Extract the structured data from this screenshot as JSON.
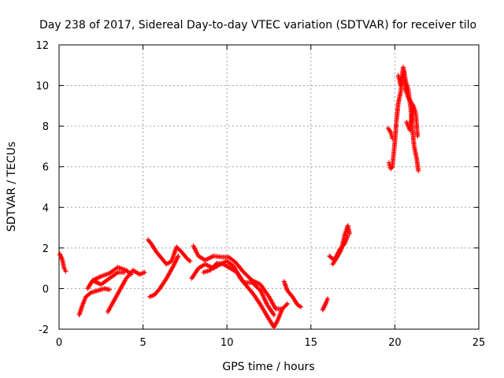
{
  "chart_data": {
    "type": "scatter",
    "title": "Day 238 of 2017, Sidereal Day-to-day VTEC variation (SDTVAR) for receiver tilo",
    "xlabel": "GPS time / hours",
    "ylabel": "SDTVAR / TECUs",
    "xlim": [
      0,
      25
    ],
    "ylim": [
      -2,
      12
    ],
    "x_ticks": [
      "0",
      "5",
      "10",
      "15",
      "20",
      "25"
    ],
    "y_ticks": [
      "-2",
      "0",
      "2",
      "4",
      "6",
      "8",
      "10",
      "12"
    ],
    "grid": true,
    "marker": "+",
    "color": "#ff0000",
    "series": [
      {
        "name": "SDTVAR",
        "segments": [
          [
            [
              0.05,
              1.7
            ],
            [
              0.2,
              1.4
            ],
            [
              0.3,
              1.0
            ],
            [
              0.4,
              0.85
            ]
          ],
          [
            [
              1.2,
              -1.3
            ],
            [
              1.4,
              -0.8
            ],
            [
              1.6,
              -0.4
            ],
            [
              1.9,
              -0.2
            ],
            [
              2.3,
              -0.1
            ],
            [
              2.7,
              0.0
            ],
            [
              3.0,
              -0.05
            ]
          ],
          [
            [
              1.7,
              0.0
            ],
            [
              2.0,
              0.4
            ],
            [
              2.5,
              0.6
            ],
            [
              3.0,
              0.75
            ],
            [
              3.5,
              1.05
            ],
            [
              4.0,
              0.9
            ],
            [
              4.3,
              0.7
            ]
          ],
          [
            [
              2.0,
              0.4
            ],
            [
              2.5,
              0.2
            ],
            [
              3.0,
              0.5
            ],
            [
              3.5,
              0.8
            ],
            [
              3.9,
              0.8
            ]
          ],
          [
            [
              2.9,
              -1.15
            ],
            [
              3.2,
              -0.7
            ],
            [
              3.6,
              -0.1
            ],
            [
              4.0,
              0.5
            ],
            [
              4.4,
              0.9
            ],
            [
              4.8,
              0.7
            ],
            [
              5.1,
              0.8
            ]
          ],
          [
            [
              5.3,
              2.4
            ],
            [
              5.5,
              2.2
            ],
            [
              5.8,
              1.8
            ],
            [
              6.1,
              1.5
            ],
            [
              6.4,
              1.2
            ],
            [
              6.7,
              1.35
            ],
            [
              7.0,
              2.05
            ],
            [
              7.3,
              1.8
            ],
            [
              7.6,
              1.5
            ],
            [
              7.8,
              1.35
            ]
          ],
          [
            [
              5.4,
              -0.4
            ],
            [
              5.7,
              -0.3
            ],
            [
              6.0,
              0.0
            ],
            [
              6.4,
              0.5
            ],
            [
              6.8,
              1.1
            ],
            [
              7.1,
              1.6
            ]
          ],
          [
            [
              8.0,
              2.1
            ],
            [
              8.3,
              1.6
            ],
            [
              8.7,
              1.4
            ],
            [
              9.2,
              1.6
            ],
            [
              9.7,
              1.55
            ],
            [
              10.1,
              1.55
            ],
            [
              10.5,
              1.3
            ],
            [
              11.0,
              0.8
            ],
            [
              11.5,
              0.4
            ],
            [
              12.0,
              0.2
            ],
            [
              12.5,
              -0.4
            ],
            [
              12.9,
              -1.0
            ],
            [
              13.3,
              -1.0
            ]
          ],
          [
            [
              7.9,
              0.5
            ],
            [
              8.3,
              1.0
            ],
            [
              8.7,
              1.2
            ],
            [
              9.2,
              1.0
            ],
            [
              9.6,
              1.2
            ],
            [
              10.0,
              1.35
            ],
            [
              10.4,
              1.1
            ],
            [
              10.8,
              0.5
            ],
            [
              11.2,
              0.1
            ],
            [
              11.6,
              -0.3
            ],
            [
              12.0,
              -0.8
            ],
            [
              12.5,
              -1.5
            ],
            [
              12.8,
              -1.9
            ],
            [
              13.0,
              -1.6
            ],
            [
              13.3,
              -1.0
            ],
            [
              13.6,
              -0.75
            ]
          ],
          [
            [
              8.6,
              0.8
            ],
            [
              9.0,
              0.9
            ],
            [
              9.4,
              1.25
            ],
            [
              9.8,
              1.2
            ],
            [
              10.2,
              1.0
            ],
            [
              10.6,
              0.8
            ],
            [
              11.0,
              0.3
            ],
            [
              11.5,
              0.3
            ],
            [
              12.0,
              -0.1
            ],
            [
              12.4,
              -0.8
            ],
            [
              12.8,
              -1.3
            ]
          ],
          [
            [
              13.4,
              0.35
            ],
            [
              13.6,
              -0.1
            ],
            [
              13.9,
              -0.4
            ],
            [
              14.2,
              -0.8
            ],
            [
              14.4,
              -0.9
            ]
          ],
          [
            [
              15.7,
              -1.05
            ],
            [
              15.9,
              -0.7
            ],
            [
              16.0,
              -0.5
            ]
          ],
          [
            [
              16.1,
              1.6
            ],
            [
              16.4,
              1.4
            ],
            [
              16.7,
              1.9
            ],
            [
              17.0,
              2.2
            ],
            [
              17.2,
              2.6
            ]
          ],
          [
            [
              16.3,
              1.2
            ],
            [
              16.6,
              1.6
            ],
            [
              16.8,
              1.9
            ],
            [
              17.0,
              2.6
            ],
            [
              17.2,
              3.1
            ],
            [
              17.3,
              2.7
            ]
          ],
          [
            [
              19.6,
              7.9
            ],
            [
              19.75,
              7.7
            ],
            [
              19.85,
              7.4
            ]
          ],
          [
            [
              19.65,
              6.2
            ],
            [
              19.75,
              5.9
            ],
            [
              19.85,
              6.0
            ],
            [
              20.0,
              7.2
            ],
            [
              20.1,
              8.3
            ],
            [
              20.2,
              9.1
            ],
            [
              20.35,
              9.7
            ],
            [
              20.45,
              10.4
            ],
            [
              20.55,
              10.7
            ],
            [
              20.6,
              9.9
            ],
            [
              20.8,
              9.4
            ],
            [
              20.95,
              9.2
            ],
            [
              21.1,
              9.0
            ],
            [
              21.25,
              8.6
            ],
            [
              21.35,
              7.5
            ]
          ],
          [
            [
              20.2,
              10.5
            ],
            [
              20.35,
              10.0
            ],
            [
              20.5,
              10.9
            ],
            [
              20.65,
              10.2
            ],
            [
              20.8,
              9.8
            ],
            [
              20.95,
              8.8
            ],
            [
              21.05,
              7.8
            ],
            [
              21.15,
              7.0
            ],
            [
              21.3,
              6.4
            ],
            [
              21.4,
              5.8
            ]
          ],
          [
            [
              20.7,
              8.2
            ],
            [
              20.9,
              7.8
            ],
            [
              21.0,
              8.4
            ],
            [
              21.1,
              8.9
            ]
          ]
        ]
      }
    ]
  }
}
